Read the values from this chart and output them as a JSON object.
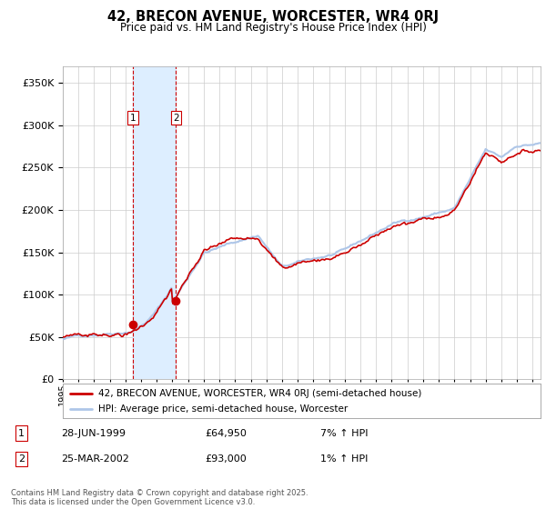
{
  "title": "42, BRECON AVENUE, WORCESTER, WR4 0RJ",
  "subtitle": "Price paid vs. HM Land Registry's House Price Index (HPI)",
  "legend_line1": "42, BRECON AVENUE, WORCESTER, WR4 0RJ (semi-detached house)",
  "legend_line2": "HPI: Average price, semi-detached house, Worcester",
  "footer": "Contains HM Land Registry data © Crown copyright and database right 2025.\nThis data is licensed under the Open Government Licence v3.0.",
  "table": [
    {
      "num": "1",
      "date": "28-JUN-1999",
      "price": "£64,950",
      "hpi": "7% ↑ HPI"
    },
    {
      "num": "2",
      "date": "25-MAR-2002",
      "price": "£93,000",
      "hpi": "1% ↑ HPI"
    }
  ],
  "purchase_dates": [
    1999.49,
    2002.23
  ],
  "purchase_prices": [
    64950,
    93000
  ],
  "hpi_color": "#aec6e8",
  "price_color": "#cc0000",
  "highlight_fill": "#ddeeff",
  "dashed_color": "#cc0000",
  "bg_color": "#ffffff",
  "grid_color": "#cccccc",
  "ylim": [
    0,
    370000
  ],
  "xlim_start": 1995.0,
  "xlim_end": 2025.5
}
